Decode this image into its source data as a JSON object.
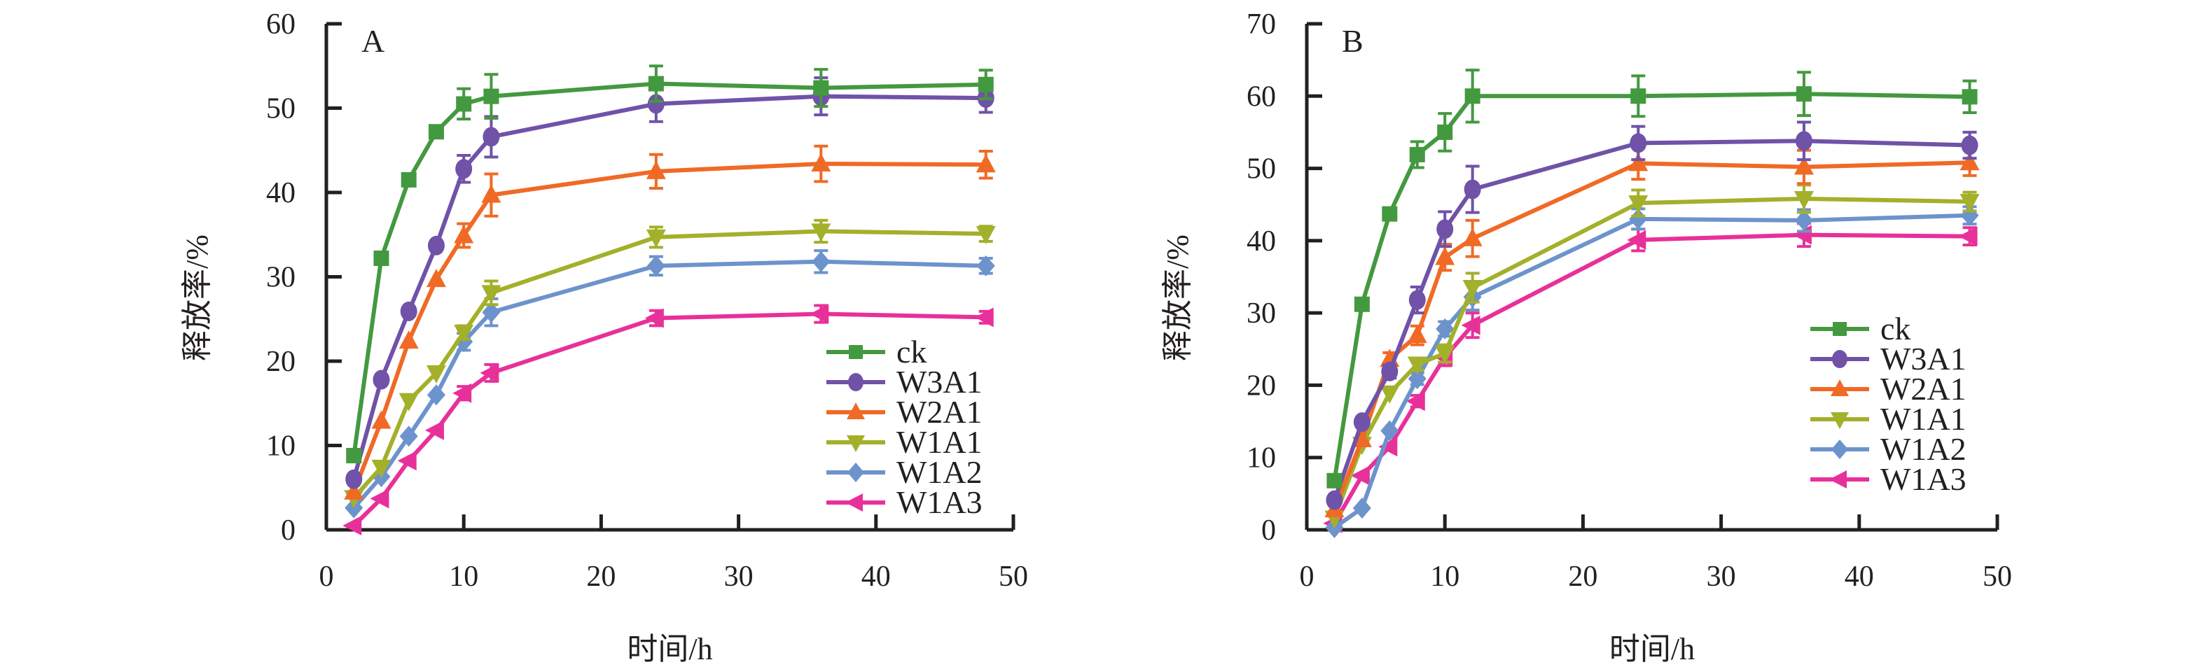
{
  "chart_data": [
    {
      "type": "line",
      "panel_label": "A",
      "title": "",
      "xlabel": "时间/h",
      "ylabel": "释放率/%",
      "xlim": [
        0,
        50
      ],
      "ylim": [
        0,
        60
      ],
      "xticks": [
        0,
        10,
        20,
        30,
        40,
        50
      ],
      "yticks": [
        0,
        10,
        20,
        30,
        40,
        50,
        60
      ],
      "grid": false,
      "legend_position": "bottom-right",
      "x": [
        2,
        4,
        6,
        8,
        10,
        12,
        24,
        36,
        48
      ],
      "series": [
        {
          "name": "ck",
          "color": "#43993f",
          "marker": "square",
          "values": [
            8.8,
            32.2,
            41.5,
            47.2,
            50.5,
            51.4,
            52.9,
            52.4,
            52.8
          ],
          "error": [
            0,
            0,
            0,
            0,
            1.8,
            2.6,
            2.1,
            2.2,
            1.7
          ]
        },
        {
          "name": "W3A1",
          "color": "#7052a8",
          "marker": "circle",
          "values": [
            6.0,
            17.8,
            25.9,
            33.7,
            42.8,
            46.6,
            50.5,
            51.4,
            51.2
          ],
          "error": [
            0,
            0,
            0,
            0,
            1.6,
            2.4,
            2.1,
            2.2,
            1.7
          ]
        },
        {
          "name": "W2A1",
          "color": "#f06a25",
          "marker": "triangle-up",
          "values": [
            4.5,
            12.9,
            22.4,
            29.7,
            34.9,
            39.7,
            42.5,
            43.4,
            43.3
          ],
          "error": [
            0,
            0,
            0,
            0,
            1.4,
            2.5,
            2.0,
            2.1,
            1.6
          ]
        },
        {
          "name": "W1A1",
          "color": "#a3b02a",
          "marker": "triangle-down",
          "values": [
            3.8,
            7.4,
            15.3,
            18.6,
            23.4,
            28.1,
            34.7,
            35.4,
            35.1
          ],
          "error": [
            0,
            0,
            0,
            0,
            0.8,
            1.4,
            1.2,
            1.3,
            0.9
          ]
        },
        {
          "name": "W1A2",
          "color": "#6c93cc",
          "marker": "diamond",
          "values": [
            2.6,
            6.3,
            11.1,
            16.0,
            22.3,
            25.8,
            31.3,
            31.8,
            31.3
          ],
          "error": [
            0,
            0,
            0,
            0,
            1.0,
            1.6,
            1.1,
            1.3,
            0.9
          ]
        },
        {
          "name": "W1A3",
          "color": "#e8309a",
          "marker": "triangle-left",
          "values": [
            0.5,
            3.7,
            8.2,
            11.8,
            16.2,
            18.6,
            25.1,
            25.6,
            25.2
          ],
          "error": [
            0,
            0,
            0,
            0,
            0.8,
            1.0,
            0.9,
            1.0,
            0.7
          ]
        }
      ]
    },
    {
      "type": "line",
      "panel_label": "B",
      "title": "",
      "xlabel": "时间/h",
      "ylabel": "释放率/%",
      "xlim": [
        0,
        50
      ],
      "ylim": [
        0,
        70
      ],
      "xticks": [
        0,
        10,
        20,
        30,
        40,
        50
      ],
      "yticks": [
        0,
        10,
        20,
        30,
        40,
        50,
        60,
        70
      ],
      "grid": false,
      "legend_position": "bottom-right",
      "x": [
        2,
        4,
        6,
        8,
        10,
        12,
        24,
        36,
        48
      ],
      "series": [
        {
          "name": "ck",
          "color": "#43993f",
          "marker": "square",
          "values": [
            6.8,
            31.2,
            43.7,
            51.9,
            55.0,
            60.0,
            60.0,
            60.3,
            59.9
          ],
          "error": [
            0,
            0,
            0,
            1.8,
            2.6,
            3.6,
            2.8,
            3.0,
            2.2
          ]
        },
        {
          "name": "W3A1",
          "color": "#7052a8",
          "marker": "circle",
          "values": [
            4.1,
            14.9,
            21.9,
            31.8,
            41.6,
            47.1,
            53.5,
            53.8,
            53.2
          ],
          "error": [
            0,
            0,
            0.9,
            1.8,
            2.4,
            3.2,
            2.3,
            2.6,
            1.8
          ]
        },
        {
          "name": "W2A1",
          "color": "#f06a25",
          "marker": "triangle-up",
          "values": [
            2.8,
            12.5,
            23.6,
            26.9,
            37.7,
            40.3,
            50.7,
            50.2,
            50.8
          ],
          "error": [
            0,
            0,
            0.9,
            1.3,
            1.8,
            2.5,
            2.2,
            2.3,
            1.8
          ]
        },
        {
          "name": "W1A1",
          "color": "#a3b02a",
          "marker": "triangle-down",
          "values": [
            1.6,
            11.8,
            18.9,
            22.9,
            24.4,
            33.5,
            45.2,
            45.8,
            45.4
          ],
          "error": [
            0,
            0,
            0,
            0.8,
            1.2,
            2.0,
            1.8,
            1.9,
            1.3
          ]
        },
        {
          "name": "W1A2",
          "color": "#6c93cc",
          "marker": "diamond",
          "values": [
            0.3,
            3.0,
            13.7,
            20.9,
            27.8,
            32.2,
            43.0,
            42.8,
            43.5
          ],
          "error": [
            0,
            0,
            0,
            0.8,
            1.0,
            1.8,
            1.4,
            1.5,
            1.2
          ]
        },
        {
          "name": "W1A3",
          "color": "#e8309a",
          "marker": "triangle-left",
          "values": [
            0.9,
            7.5,
            11.5,
            17.8,
            23.9,
            28.3,
            40.1,
            40.8,
            40.6
          ],
          "error": [
            0,
            0,
            0,
            0.8,
            1.2,
            1.7,
            1.5,
            1.6,
            1.2
          ]
        }
      ]
    }
  ]
}
